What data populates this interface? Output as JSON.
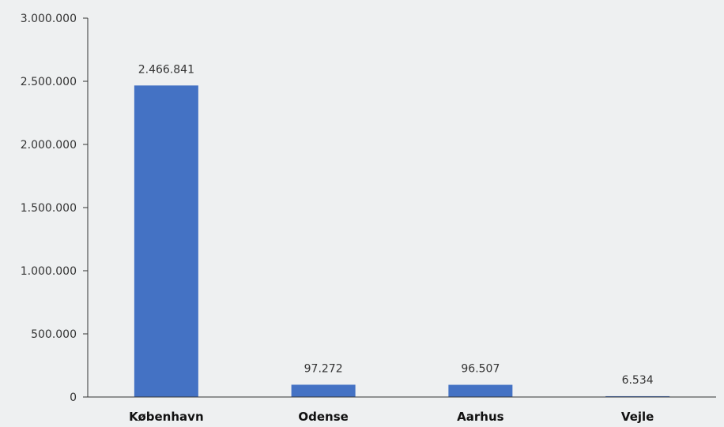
{
  "chart_data": {
    "type": "bar",
    "title": "",
    "xlabel": "",
    "ylabel": "",
    "categories": [
      "København",
      "Odense",
      "Aarhus",
      "Vejle"
    ],
    "values": [
      2466841,
      97272,
      96507,
      6534
    ],
    "data_labels": [
      "2.466.841",
      "97.272",
      "96.507",
      "6.534"
    ],
    "ylim": [
      0,
      3000000
    ],
    "yticks": [
      0,
      500000,
      1000000,
      1500000,
      2000000,
      2500000,
      3000000
    ],
    "ytick_labels": [
      "0",
      "500.000",
      "1.000.000",
      "1.500.000",
      "2.000.000",
      "2.500.000",
      "3.000.000"
    ],
    "grid": false,
    "legend": "none",
    "bar_color": "#4472c4",
    "axis_color": "#333333"
  }
}
